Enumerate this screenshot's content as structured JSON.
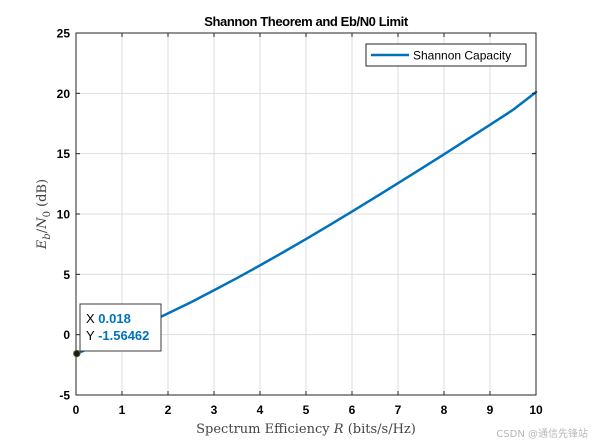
{
  "chart_data": {
    "type": "line",
    "title": "Shannon Theorem and Eb/N0 Limit",
    "xlabel_prefix": "Spectrum Efficiency ",
    "xlabel_var": "R",
    "xlabel_suffix": " (bits/s/Hz)",
    "ylabel": "E_b/N_0 (dB)",
    "xlim": [
      0,
      10
    ],
    "ylim": [
      -5,
      25
    ],
    "xticks": [
      0,
      1,
      2,
      3,
      4,
      5,
      6,
      7,
      8,
      9,
      10
    ],
    "yticks": [
      -5,
      0,
      5,
      10,
      15,
      20,
      25
    ],
    "grid": true,
    "legend_position": "top-right",
    "series": [
      {
        "name": "Shannon Capacity",
        "color": "#0072BD",
        "x": [
          0.018,
          0.5,
          1,
          1.5,
          2,
          2.5,
          3,
          3.5,
          4,
          4.5,
          5,
          5.5,
          6,
          6.5,
          7,
          7.5,
          8,
          8.5,
          9,
          9.5,
          10
        ],
        "y": [
          -1.56,
          -0.82,
          0.0,
          0.85,
          1.76,
          2.69,
          3.68,
          4.69,
          5.74,
          6.82,
          7.92,
          9.05,
          10.2,
          11.37,
          12.55,
          13.74,
          14.95,
          16.17,
          17.39,
          18.63,
          20.1
        ]
      }
    ],
    "datatip": {
      "x_label": "X",
      "x_value": "0.018",
      "y_label": "Y",
      "y_value": "-1.56462",
      "point_x": 0.018,
      "point_y": -1.56462
    }
  },
  "watermark": "CSDN @通信先锋站"
}
